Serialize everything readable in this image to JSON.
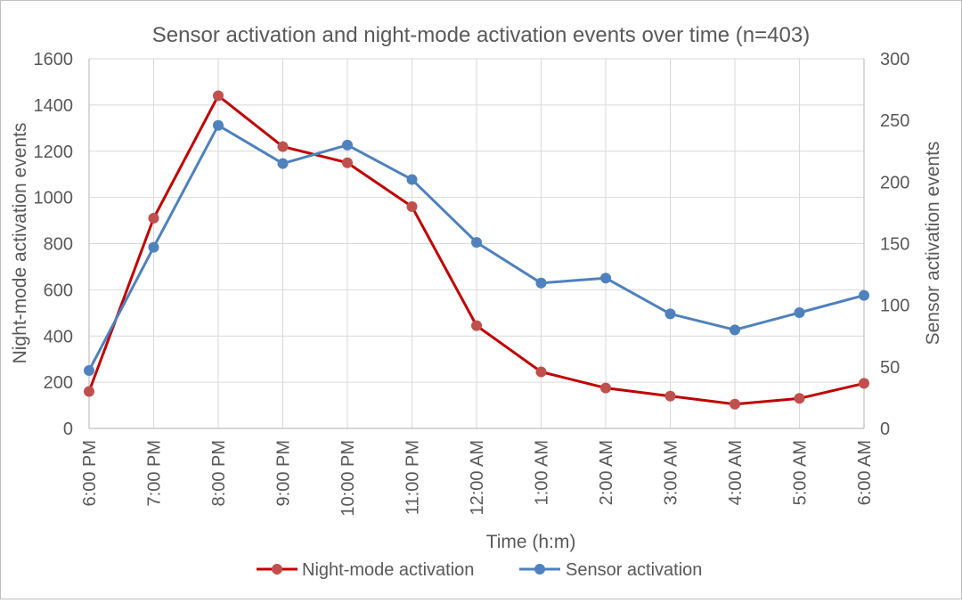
{
  "chart_data": {
    "type": "line",
    "title": "Sensor activation and night-mode activation events over time  (n=403)",
    "xlabel": "Time (h:m)",
    "ylabel_left": "Night-mode activation events",
    "ylabel_right": "Sensor activation events",
    "categories": [
      "6:00 PM",
      "7:00 PM",
      "8:00 PM",
      "9:00 PM",
      "10:00 PM",
      "11:00 PM",
      "12:00 AM",
      "1:00 AM",
      "2:00 AM",
      "3:00 AM",
      "4:00 AM",
      "5:00 AM",
      "6:00 AM"
    ],
    "ylim_left": [
      0,
      1600
    ],
    "yticks_left": [
      0,
      200,
      400,
      600,
      800,
      1000,
      1200,
      1400,
      1600
    ],
    "ylim_right": [
      0,
      300
    ],
    "yticks_right": [
      0,
      50,
      100,
      150,
      200,
      250,
      300
    ],
    "grid": true,
    "legend_position": "bottom",
    "series": [
      {
        "name": "Night-mode activation",
        "axis": "left",
        "color": "#c00000",
        "marker_color": "#c0504d",
        "values": [
          160,
          910,
          1440,
          1220,
          1150,
          960,
          445,
          245,
          175,
          140,
          105,
          130,
          195
        ]
      },
      {
        "name": "Sensor activation",
        "axis": "right",
        "color": "#4f81bd",
        "marker_color": "#4f81bd",
        "values": [
          47,
          147,
          246,
          215,
          230,
          202,
          151,
          118,
          122,
          93,
          80,
          94,
          108
        ]
      }
    ]
  }
}
